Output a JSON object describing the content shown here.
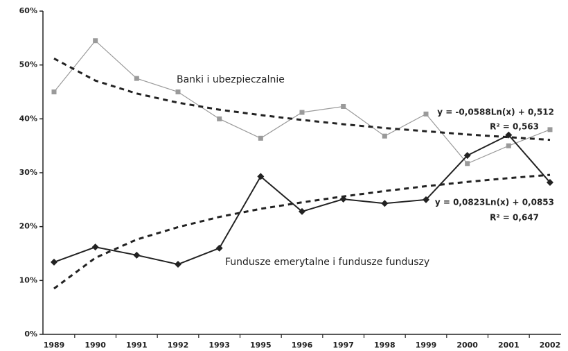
{
  "chart_data": {
    "type": "line",
    "categories": [
      "1989",
      "1990",
      "1991",
      "1992",
      "1993",
      "1995",
      "1996",
      "1997",
      "1998",
      "1999",
      "2000",
      "2001",
      "2002"
    ],
    "ylim": [
      0,
      60
    ],
    "yticks": [
      {
        "value": 0,
        "label": "0%"
      },
      {
        "value": 10,
        "label": "10%"
      },
      {
        "value": 20,
        "label": "20%"
      },
      {
        "value": 30,
        "label": "30%"
      },
      {
        "value": 40,
        "label": "40%"
      },
      {
        "value": 50,
        "label": "50%"
      },
      {
        "value": 60,
        "label": "60%"
      }
    ],
    "grid": false,
    "series": [
      {
        "name": "Banki i ubezpieczalnie",
        "color": "#9a9a9a",
        "marker": "square",
        "values": [
          45.0,
          54.5,
          47.5,
          45.0,
          40.0,
          36.4,
          41.2,
          42.3,
          36.8,
          40.9,
          31.7,
          35.0,
          38.0
        ]
      },
      {
        "name": "Fundusze emerytalne i fundusze funduszy",
        "color": "#222222",
        "marker": "diamond",
        "values": [
          13.4,
          16.2,
          14.7,
          13.0,
          16.0,
          29.3,
          22.8,
          25.1,
          24.3,
          25.0,
          33.2,
          37.0,
          28.2
        ]
      }
    ],
    "trendlines": [
      {
        "color": "#222222",
        "equation": "y = -0,0588Ln(x) + 0,512",
        "r2": "R² = 0,563",
        "values": [
          51.2,
          47.1,
          44.7,
          43.0,
          41.7,
          40.7,
          39.8,
          39.0,
          38.3,
          37.7,
          37.1,
          36.6,
          36.1
        ]
      },
      {
        "color": "#222222",
        "equation": "y = 0,0823Ln(x) + 0,0853",
        "r2": "R² = 0,647",
        "values": [
          8.5,
          14.2,
          17.6,
          19.9,
          21.8,
          23.3,
          24.5,
          25.6,
          26.6,
          27.5,
          28.3,
          29.0,
          29.6
        ]
      }
    ]
  }
}
